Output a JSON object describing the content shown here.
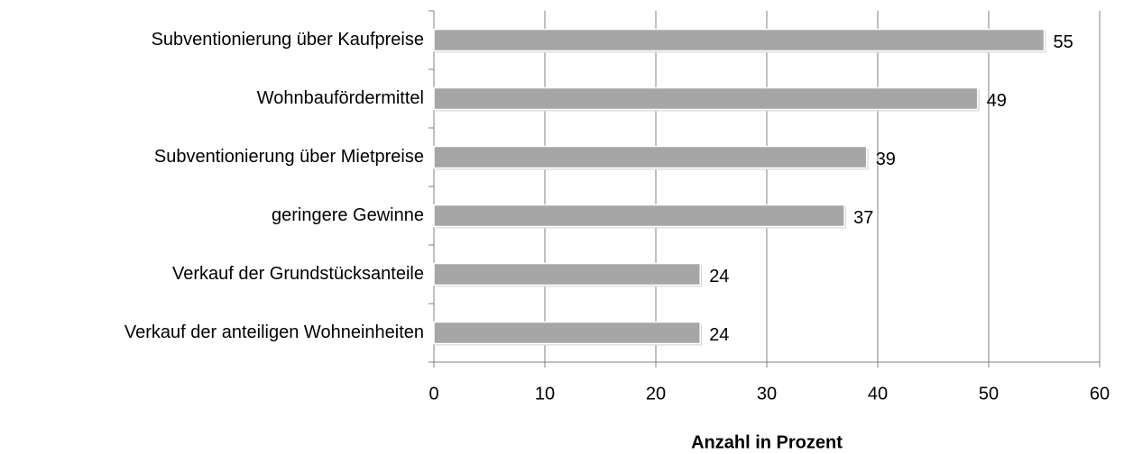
{
  "chart_data": {
    "type": "barh",
    "categories": [
      "Subventionierung über Kaufpreise",
      "Wohnbaufördermittel",
      "Subventionierung über Mietpreise",
      "geringere Gewinne",
      "Verkauf der Grundstücksanteile",
      "Verkauf der anteiligen Wohneinheiten"
    ],
    "values": [
      55,
      49,
      39,
      37,
      24,
      24
    ],
    "color": "#a6a6a6",
    "xlabel": "Anzahl in Prozent",
    "xlim": [
      0,
      60
    ],
    "xticks": [
      0,
      10,
      20,
      30,
      40,
      50,
      60
    ],
    "grid": true
  }
}
